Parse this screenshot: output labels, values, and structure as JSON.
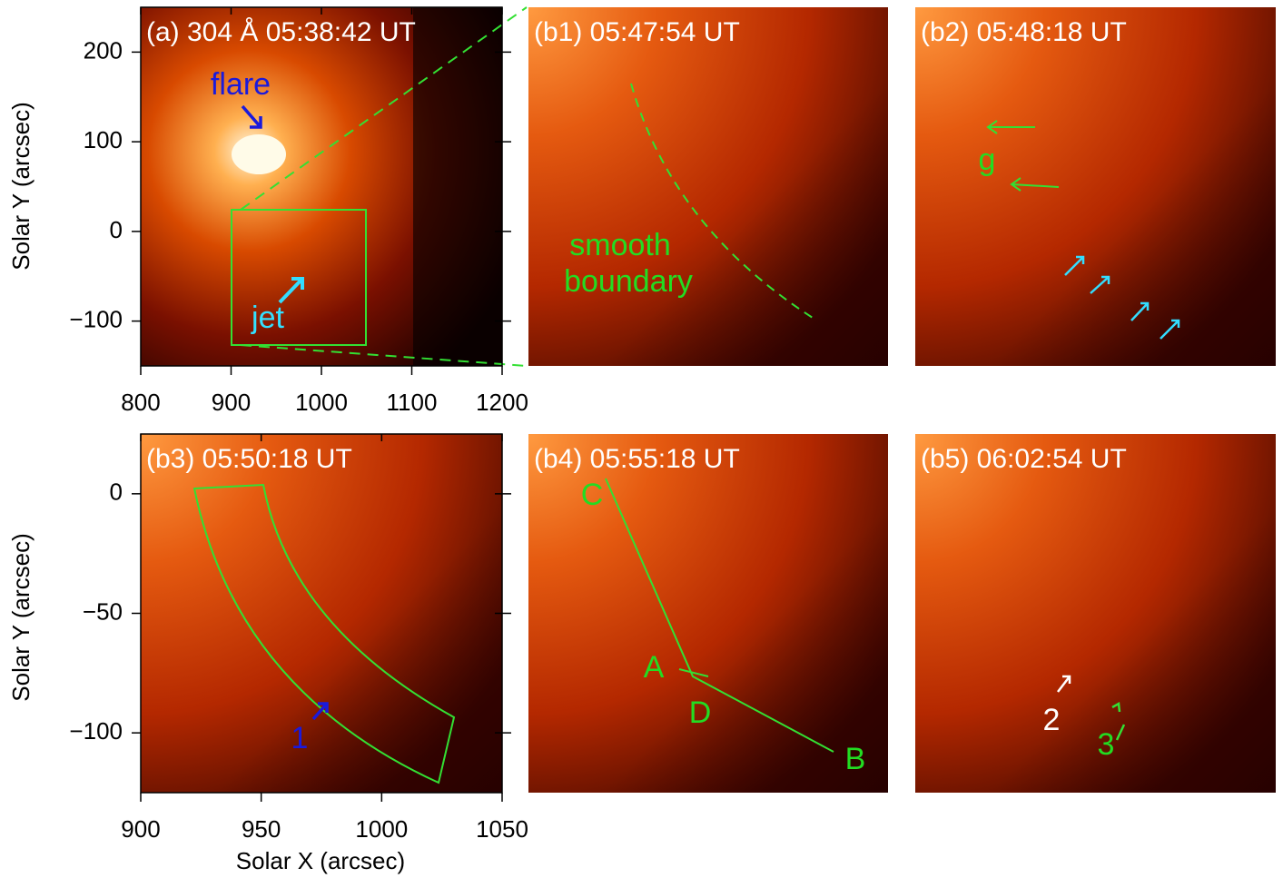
{
  "panels": [
    {
      "label": "(a) 304 Å 05:38:42 UT",
      "xlim": [
        800,
        1200
      ],
      "ylim": [
        -150,
        250
      ],
      "xticks": [
        800,
        900,
        1000,
        1100,
        1200
      ],
      "yticks": [
        {
          "value": -100,
          "label": "−100"
        },
        0,
        100,
        200
      ],
      "annotations": [
        "flare",
        "jet"
      ]
    },
    {
      "label": "(b1) 05:47:54 UT",
      "annotations": [
        "smooth",
        "boundary"
      ]
    },
    {
      "label": "(b2) 05:48:18 UT",
      "annotations": [
        "g"
      ]
    },
    {
      "label": "(b3) 05:50:18 UT",
      "xlim": [
        900,
        1050
      ],
      "ylim": [
        -125,
        25
      ],
      "xticks": [
        900,
        950,
        1000,
        1050
      ],
      "yticks": [
        {
          "value": -100,
          "label": "−100"
        },
        {
          "value": -50,
          "label": "−50"
        },
        0
      ],
      "annotations": [
        "1"
      ]
    },
    {
      "label": "(b4) 05:55:18 UT",
      "annotations": [
        "C",
        "A",
        "D",
        "B"
      ]
    },
    {
      "label": "(b5) 06:02:54 UT",
      "annotations": [
        "2",
        "3"
      ]
    }
  ],
  "x_label": "Solar X (arcsec)",
  "y_label": "Solar Y (arcsec)"
}
